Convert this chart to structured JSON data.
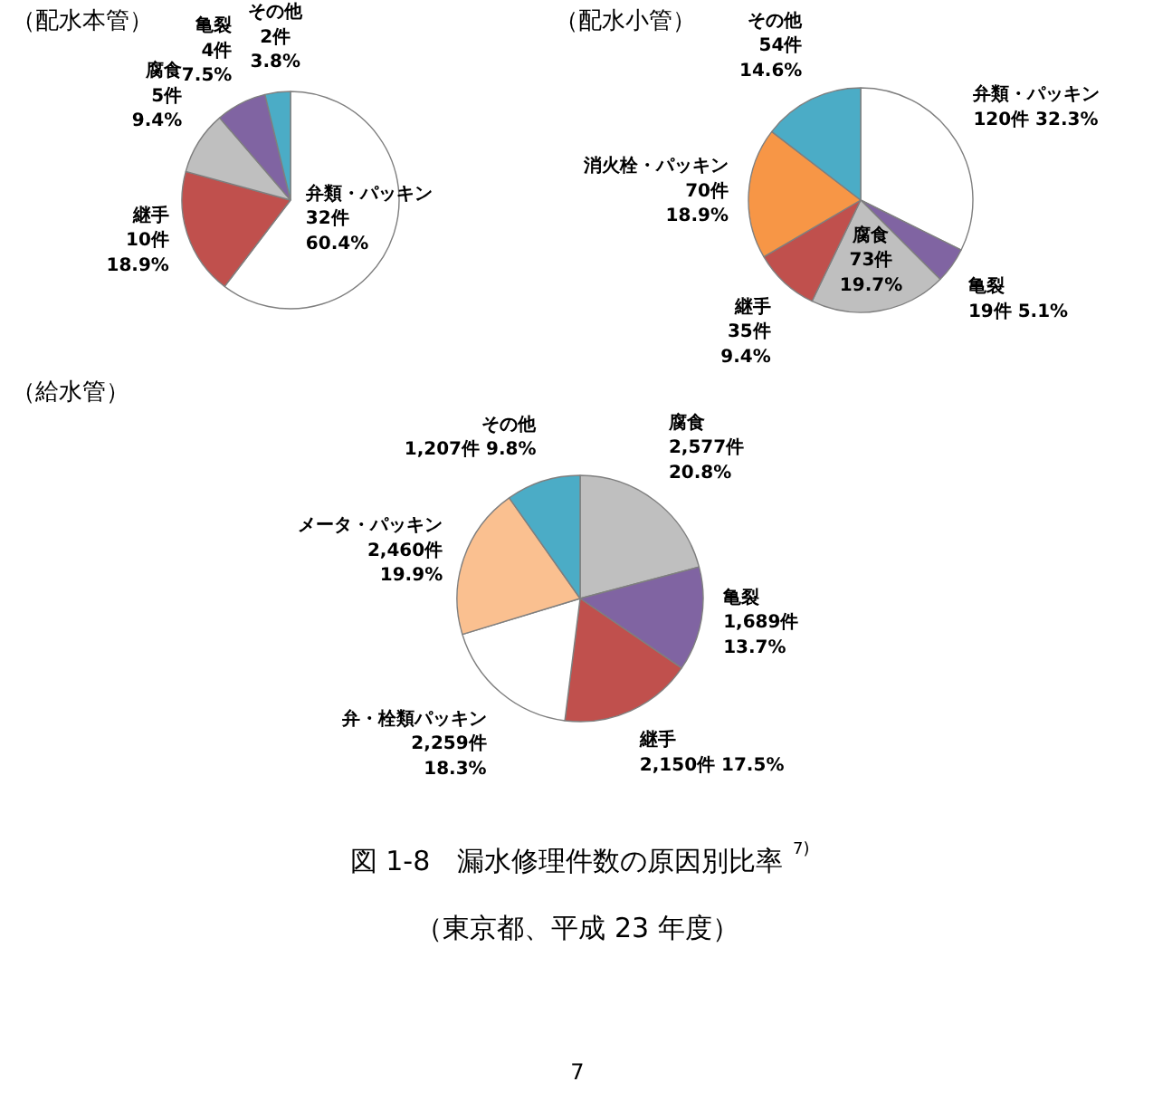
{
  "chart_data": [
    {
      "type": "pie",
      "title": "（配水本管）",
      "legend": false,
      "categories": [
        "弁類・パッキン",
        "継手",
        "腐食",
        "亀裂",
        "その他"
      ],
      "values": [
        32,
        10,
        5,
        4,
        2
      ],
      "value_labels": [
        "32件\n60.4%",
        "10件\n18.9%",
        "5件\n9.4%",
        "4件\n7.5%",
        "2件\n3.8%"
      ],
      "colors": [
        "#ffffff",
        "#c0504d",
        "#bfbfbf",
        "#8064a2",
        "#4bacc6"
      ]
    },
    {
      "type": "pie",
      "title": "（配水小管）",
      "legend": false,
      "categories": [
        "弁類・パッキン",
        "亀裂",
        "腐食",
        "継手",
        "消火栓・パッキン",
        "その他"
      ],
      "values": [
        120,
        19,
        73,
        35,
        70,
        54
      ],
      "value_labels": [
        "120件 32.3%",
        "19件 5.1%",
        "73件\n19.7%",
        "35件\n9.4%",
        "70件\n18.9%",
        "54件\n14.6%"
      ],
      "colors": [
        "#ffffff",
        "#8064a2",
        "#bfbfbf",
        "#c0504d",
        "#f79646",
        "#4bacc6"
      ]
    },
    {
      "type": "pie",
      "title": "（給水管）",
      "legend": false,
      "categories": [
        "腐食",
        "亀裂",
        "継手",
        "弁・栓類パッキン",
        "メータ・パッキン",
        "その他"
      ],
      "values": [
        2577,
        1689,
        2150,
        2259,
        2460,
        1207
      ],
      "value_labels": [
        "2,577件\n20.8%",
        "1,689件\n13.7%",
        "2,150件 17.5%",
        "2,259件\n18.3%",
        "2,460件\n19.9%",
        "1,207件 9.8%"
      ],
      "colors": [
        "#bfbfbf",
        "#8064a2",
        "#c0504d",
        "#ffffff",
        "#fac090",
        "#4bacc6"
      ],
      "annotations": [
        "図 1-8　漏水修理件数の原因別比率$^{7)}$",
        "（東京都、平成 23 年度）",
        "7"
      ]
    }
  ]
}
